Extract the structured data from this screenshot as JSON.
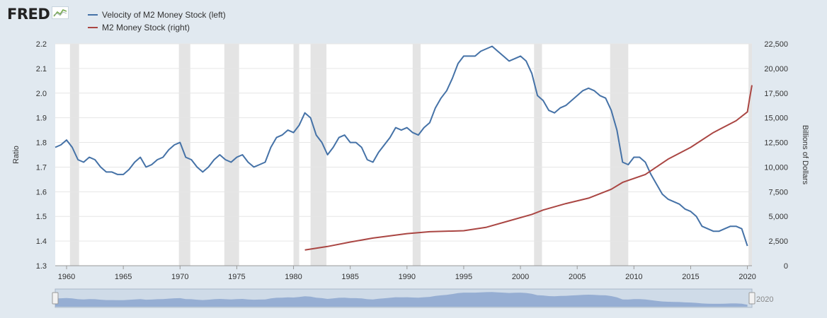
{
  "brand": {
    "name": "FRED",
    "icon": "chart-line-icon"
  },
  "colors": {
    "velocity": "#4572a7",
    "money": "#aa4643",
    "recession": "#e4e4e4",
    "background": "#e1e9f0",
    "navigator": "#8ca6cf"
  },
  "chart_data": {
    "type": "line",
    "title": "",
    "xlabel": "",
    "ylabel": "Ratio",
    "y2label": "Billions of Dollars",
    "xlim": [
      1959.0,
      2020.4
    ],
    "ylim": [
      1.3,
      2.2
    ],
    "y2lim": [
      0,
      22500
    ],
    "x_ticks": [
      "1960",
      "1965",
      "1970",
      "1975",
      "1980",
      "1985",
      "1990",
      "1995",
      "2000",
      "2005",
      "2010",
      "2015",
      "2020"
    ],
    "y_ticks": [
      "1.3",
      "1.4",
      "1.5",
      "1.6",
      "1.7",
      "1.8",
      "1.9",
      "2.0",
      "2.1",
      "2.2"
    ],
    "y2_ticks": [
      "0",
      "2,500",
      "5,000",
      "7,500",
      "10,000",
      "12,500",
      "15,000",
      "17,500",
      "20,000",
      "22,500"
    ],
    "grid": true,
    "legend_position": "top-left",
    "recessions": [
      [
        1960.3,
        1961.1
      ],
      [
        1969.9,
        1970.9
      ],
      [
        1973.9,
        1975.2
      ],
      [
        1980.0,
        1980.5
      ],
      [
        1981.5,
        1982.9
      ],
      [
        1990.5,
        1991.2
      ],
      [
        2001.2,
        2001.9
      ],
      [
        2007.9,
        2009.5
      ],
      [
        2020.1,
        2020.4
      ]
    ],
    "series": [
      {
        "name": "Velocity of M2 Money Stock (left)",
        "axis": "left",
        "x": [
          1959.0,
          1959.5,
          1960.0,
          1960.5,
          1961.0,
          1961.5,
          1962.0,
          1962.5,
          1963.0,
          1963.5,
          1964.0,
          1964.5,
          1965.0,
          1965.5,
          1966.0,
          1966.5,
          1967.0,
          1967.5,
          1968.0,
          1968.5,
          1969.0,
          1969.5,
          1970.0,
          1970.5,
          1971.0,
          1971.5,
          1972.0,
          1972.5,
          1973.0,
          1973.5,
          1974.0,
          1974.5,
          1975.0,
          1975.5,
          1976.0,
          1976.5,
          1977.0,
          1977.5,
          1978.0,
          1978.5,
          1979.0,
          1979.5,
          1980.0,
          1980.5,
          1981.0,
          1981.5,
          1982.0,
          1982.5,
          1983.0,
          1983.5,
          1984.0,
          1984.5,
          1985.0,
          1985.5,
          1986.0,
          1986.5,
          1987.0,
          1987.5,
          1988.0,
          1988.5,
          1989.0,
          1989.5,
          1990.0,
          1990.5,
          1991.0,
          1991.5,
          1992.0,
          1992.5,
          1993.0,
          1993.5,
          1994.0,
          1994.5,
          1995.0,
          1995.5,
          1996.0,
          1996.5,
          1997.0,
          1997.5,
          1998.0,
          1998.5,
          1999.0,
          1999.5,
          2000.0,
          2000.5,
          2001.0,
          2001.5,
          2002.0,
          2002.5,
          2003.0,
          2003.5,
          2004.0,
          2004.5,
          2005.0,
          2005.5,
          2006.0,
          2006.5,
          2007.0,
          2007.5,
          2008.0,
          2008.5,
          2009.0,
          2009.5,
          2010.0,
          2010.5,
          2011.0,
          2011.5,
          2012.0,
          2012.5,
          2013.0,
          2013.5,
          2014.0,
          2014.5,
          2015.0,
          2015.5,
          2016.0,
          2016.5,
          2017.0,
          2017.5,
          2018.0,
          2018.5,
          2019.0,
          2019.5,
          2020.0
        ],
        "values": [
          1.78,
          1.79,
          1.81,
          1.78,
          1.73,
          1.72,
          1.74,
          1.73,
          1.7,
          1.68,
          1.68,
          1.67,
          1.67,
          1.69,
          1.72,
          1.74,
          1.7,
          1.71,
          1.73,
          1.74,
          1.77,
          1.79,
          1.8,
          1.74,
          1.73,
          1.7,
          1.68,
          1.7,
          1.73,
          1.75,
          1.73,
          1.72,
          1.74,
          1.75,
          1.72,
          1.7,
          1.71,
          1.72,
          1.78,
          1.82,
          1.83,
          1.85,
          1.84,
          1.87,
          1.92,
          1.9,
          1.83,
          1.8,
          1.75,
          1.78,
          1.82,
          1.83,
          1.8,
          1.8,
          1.78,
          1.73,
          1.72,
          1.76,
          1.79,
          1.82,
          1.86,
          1.85,
          1.86,
          1.84,
          1.83,
          1.86,
          1.88,
          1.94,
          1.98,
          2.01,
          2.06,
          2.12,
          2.15,
          2.15,
          2.15,
          2.17,
          2.18,
          2.19,
          2.17,
          2.15,
          2.13,
          2.14,
          2.15,
          2.13,
          2.08,
          1.99,
          1.97,
          1.93,
          1.92,
          1.94,
          1.95,
          1.97,
          1.99,
          2.01,
          2.02,
          2.01,
          1.99,
          1.98,
          1.93,
          1.85,
          1.72,
          1.71,
          1.74,
          1.74,
          1.72,
          1.67,
          1.63,
          1.59,
          1.57,
          1.56,
          1.55,
          1.53,
          1.52,
          1.5,
          1.46,
          1.45,
          1.44,
          1.44,
          1.45,
          1.46,
          1.46,
          1.45,
          1.38
        ]
      },
      {
        "name": "M2 Money Stock (right)",
        "axis": "right",
        "x": [
          1981.0,
          1983.0,
          1985.0,
          1987.0,
          1990.0,
          1992.0,
          1995.0,
          1997.0,
          1999.0,
          2001.0,
          2002.0,
          2004.0,
          2006.0,
          2008.0,
          2009.0,
          2011.0,
          2013.0,
          2015.0,
          2017.0,
          2019.0,
          2020.0,
          2020.2,
          2020.4
        ],
        "values": [
          1600,
          1950,
          2400,
          2800,
          3250,
          3450,
          3550,
          3900,
          4550,
          5200,
          5650,
          6300,
          6850,
          7750,
          8450,
          9250,
          10800,
          12000,
          13500,
          14700,
          15600,
          17000,
          18300
        ]
      }
    ],
    "navigator": {
      "range_label": "2020"
    }
  }
}
